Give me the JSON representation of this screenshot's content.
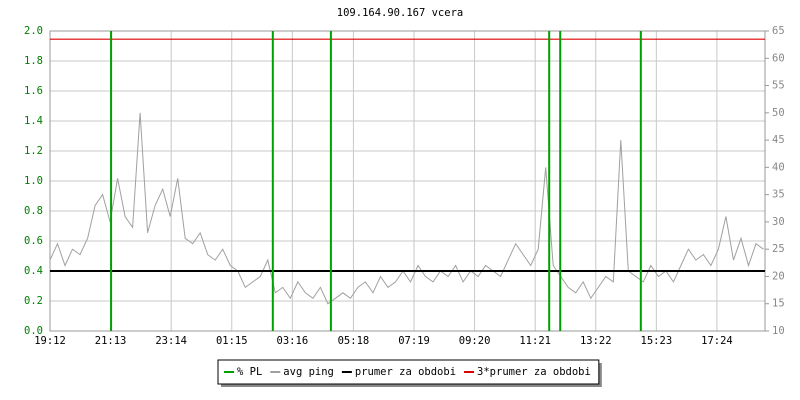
{
  "chart_data": {
    "type": "line",
    "title": "109.164.90.167 vcera",
    "xlim": [
      0,
      1428
    ],
    "xticks": [
      {
        "value": 0,
        "label": "19:12"
      },
      {
        "value": 121,
        "label": "21:13"
      },
      {
        "value": 242,
        "label": "23:14"
      },
      {
        "value": 363,
        "label": "01:15"
      },
      {
        "value": 484,
        "label": "03:16"
      },
      {
        "value": 606,
        "label": "05:18"
      },
      {
        "value": 727,
        "label": "07:19"
      },
      {
        "value": 848,
        "label": "09:20"
      },
      {
        "value": 969,
        "label": "11:21"
      },
      {
        "value": 1090,
        "label": "13:22"
      },
      {
        "value": 1211,
        "label": "15:23"
      },
      {
        "value": 1332,
        "label": "17:24"
      }
    ],
    "ylim": [
      0,
      2
    ],
    "yticks": [
      {
        "value": 0,
        "label": "0.0"
      },
      {
        "value": 0.2,
        "label": "0.2"
      },
      {
        "value": 0.4,
        "label": "0.4"
      },
      {
        "value": 0.6,
        "label": "0.6"
      },
      {
        "value": 0.8,
        "label": "0.8"
      },
      {
        "value": 1,
        "label": "1.0"
      },
      {
        "value": 1.2,
        "label": "1.2"
      },
      {
        "value": 1.4,
        "label": "1.4"
      },
      {
        "value": 1.6,
        "label": "1.6"
      },
      {
        "value": 1.8,
        "label": "1.8"
      },
      {
        "value": 2,
        "label": "2.0"
      }
    ],
    "y2lim": [
      10,
      65
    ],
    "y2ticks": [
      10,
      15,
      20,
      25,
      30,
      35,
      40,
      45,
      50,
      55,
      60,
      65
    ],
    "grid": true,
    "series": [
      {
        "name": "% PL",
        "color": "#00a000",
        "style": "impulse",
        "x": [
          122,
          445,
          561,
          997,
          1019,
          1180
        ],
        "values": [
          2,
          2,
          2,
          2,
          2,
          2
        ]
      },
      {
        "name": "avg ping",
        "color": "#a0a0a0",
        "axis": "y2",
        "x": [
          0,
          15,
          30,
          45,
          60,
          75,
          90,
          105,
          120,
          135,
          150,
          165,
          180,
          195,
          210,
          225,
          240,
          255,
          270,
          285,
          300,
          315,
          330,
          345,
          360,
          375,
          390,
          405,
          420,
          435,
          450,
          465,
          480,
          495,
          510,
          525,
          540,
          555,
          570,
          585,
          600,
          615,
          630,
          645,
          660,
          675,
          690,
          705,
          720,
          735,
          750,
          765,
          780,
          795,
          810,
          825,
          840,
          855,
          870,
          885,
          900,
          915,
          930,
          945,
          960,
          975,
          990,
          1005,
          1020,
          1035,
          1050,
          1065,
          1080,
          1095,
          1110,
          1125,
          1140,
          1155,
          1170,
          1185,
          1200,
          1215,
          1230,
          1245,
          1260,
          1275,
          1290,
          1305,
          1320,
          1335,
          1350,
          1365,
          1380,
          1395,
          1410,
          1425
        ],
        "values": [
          23,
          26,
          22,
          25,
          24,
          27,
          33,
          35,
          30,
          38,
          31,
          29,
          50,
          28,
          33,
          36,
          31,
          38,
          27,
          26,
          28,
          24,
          23,
          25,
          22,
          21,
          18,
          19,
          20,
          23,
          17,
          18,
          16,
          19,
          17,
          16,
          18,
          15,
          16,
          17,
          16,
          18,
          19,
          17,
          20,
          18,
          19,
          21,
          19,
          22,
          20,
          19,
          21,
          20,
          22,
          19,
          21,
          20,
          22,
          21,
          20,
          23,
          26,
          24,
          22,
          25,
          40,
          22,
          20,
          18,
          17,
          19,
          16,
          18,
          20,
          19,
          45,
          21,
          20,
          19,
          22,
          20,
          21,
          19,
          22,
          25,
          23,
          24,
          22,
          25,
          31,
          23,
          27,
          22,
          26,
          25
        ]
      },
      {
        "name": "prumer za obdobi",
        "color": "#000000",
        "axis": "y2",
        "style": "hline",
        "values": [
          21
        ]
      },
      {
        "name": "3*prumer za obdobi",
        "color": "#e00000",
        "axis": "y2",
        "style": "hline",
        "values": [
          63.5
        ]
      }
    ]
  }
}
